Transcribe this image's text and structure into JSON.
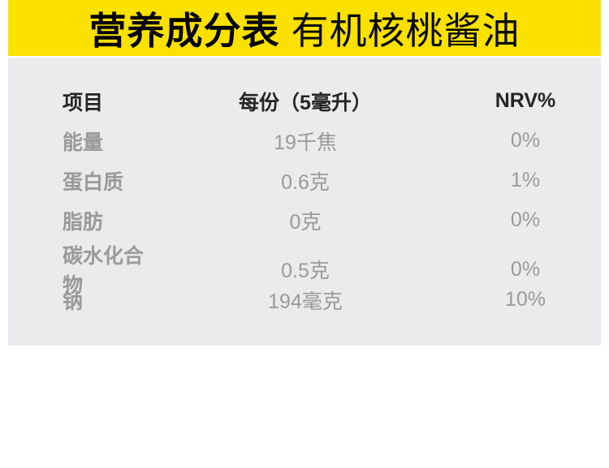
{
  "header": {
    "title_bold": "营养成分表",
    "title_regular": "有机核桃酱油",
    "band_color": "#fae100",
    "text_color": "#050505"
  },
  "table": {
    "panel_color": "#ebebed",
    "header_text_color": "#252525",
    "row_text_color": "#9a9a9a",
    "columns": [
      "项目",
      "每份（5毫升）",
      "NRV%"
    ],
    "rows": [
      {
        "item": "能量",
        "amount": "19千焦",
        "nrv": "0%"
      },
      {
        "item": "蛋白质",
        "amount": "0.6克",
        "nrv": "1%"
      },
      {
        "item": "脂肪",
        "amount": "0克",
        "nrv": "0%"
      },
      {
        "item": "碳水化合物",
        "amount": "0.5克",
        "nrv": "0%"
      },
      {
        "item": "钠",
        "amount": "194毫克",
        "nrv": "10%"
      }
    ]
  }
}
